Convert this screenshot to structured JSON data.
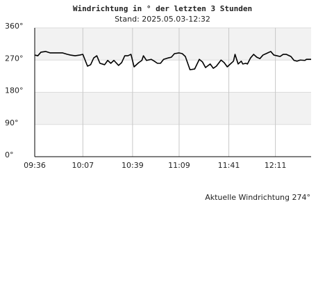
{
  "chart_data": {
    "type": "line",
    "title": "Windrichtung in ° der letzten 3 Stunden",
    "subtitle": "Stand: 2025.05.03-12:32",
    "annotation": "Aktuelle Windrichtung 274°",
    "color": "#000000",
    "grid": true,
    "x": [
      576,
      578,
      580,
      583,
      586,
      589,
      591,
      594,
      597,
      599,
      602,
      605,
      607,
      610,
      612,
      614,
      616,
      618,
      621,
      623,
      625,
      627,
      630,
      632,
      634,
      636,
      638,
      640,
      643,
      645,
      646,
      648,
      651,
      653,
      655,
      657,
      659,
      662,
      664,
      666,
      669,
      671,
      673,
      676,
      679,
      682,
      684,
      686,
      689,
      691,
      693,
      696,
      698,
      700,
      702,
      704,
      705,
      707,
      709,
      710,
      712,
      713,
      715,
      717,
      719,
      721,
      723,
      726,
      728,
      730,
      732,
      734,
      736,
      738,
      741,
      743,
      745,
      747,
      750,
      751,
      754
    ],
    "values": [
      284,
      282,
      292,
      294,
      290,
      290,
      290,
      290,
      286,
      284,
      282,
      284,
      286,
      253,
      257,
      276,
      282,
      261,
      257,
      269,
      261,
      269,
      255,
      263,
      282,
      282,
      286,
      251,
      263,
      269,
      282,
      269,
      272,
      267,
      261,
      261,
      272,
      276,
      278,
      288,
      290,
      288,
      280,
      243,
      245,
      272,
      265,
      249,
      259,
      247,
      253,
      270,
      263,
      251,
      259,
      267,
      286,
      259,
      267,
      259,
      261,
      259,
      276,
      286,
      278,
      274,
      284,
      290,
      294,
      284,
      282,
      280,
      286,
      286,
      280,
      269,
      267,
      270,
      269,
      272,
      272
    ],
    "xlim": [
      576,
      754
    ],
    "xticks": [
      {
        "value": 576,
        "label": "09:36"
      },
      {
        "value": 607,
        "label": "10:07"
      },
      {
        "value": 639,
        "label": "10:39"
      },
      {
        "value": 669,
        "label": "11:09"
      },
      {
        "value": 701,
        "label": "11:41"
      },
      {
        "value": 731,
        "label": "12:11"
      }
    ],
    "ylim": [
      0,
      360
    ],
    "yticks": [
      {
        "value": 0,
        "label": "0°"
      },
      {
        "value": 90,
        "label": "90°"
      },
      {
        "value": 180,
        "label": "180°"
      },
      {
        "value": 270,
        "label": "270°"
      },
      {
        "value": 360,
        "label": "360°"
      }
    ]
  }
}
